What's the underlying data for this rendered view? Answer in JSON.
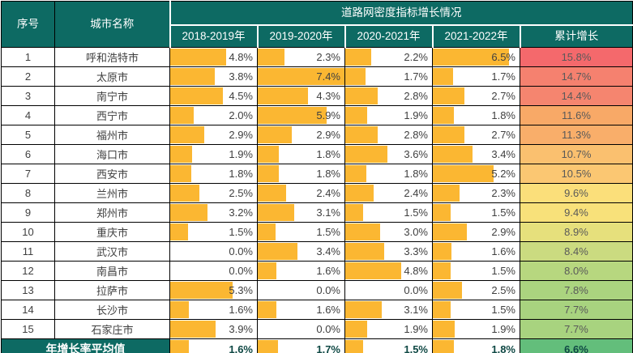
{
  "table": {
    "group_header": "道路网密度指标增长情况",
    "headers": {
      "seq": "序号",
      "city": "城市名称",
      "years": [
        "2018-2019年",
        "2019-2020年",
        "2020-2021年",
        "2021-2022年"
      ],
      "cumulative": "累计增长"
    },
    "average_label": "年增长率平均值"
  },
  "colors": {
    "header_bg": "#0D6A63",
    "bar_fill": "#FBB732",
    "grid_line": "#000000",
    "value_text": "#404040",
    "cumulative_text": "#595959",
    "average_value_text": "#0F4844",
    "average_cumulative_bg": "#63BE7B",
    "color_scale": [
      "#F8696B",
      "#FFEB84",
      "#63BE7B"
    ]
  },
  "chart_data": {
    "type": "table",
    "title": "道路网密度指标增长情况",
    "columns": [
      "序号",
      "城市名称",
      "2018-2019年",
      "2019-2020年",
      "2020-2021年",
      "2021-2022年",
      "累计增长"
    ],
    "unit": "%",
    "bar_scale": {
      "min": 0,
      "max": 7.4
    },
    "rows": [
      [
        1,
        "呼和浩特市",
        4.8,
        2.3,
        2.2,
        6.5,
        15.8
      ],
      [
        2,
        "太原市",
        3.8,
        7.4,
        1.7,
        1.7,
        14.7
      ],
      [
        3,
        "南宁市",
        4.5,
        4.3,
        2.8,
        2.7,
        14.4
      ],
      [
        4,
        "西宁市",
        2.0,
        5.9,
        1.9,
        1.8,
        11.6
      ],
      [
        5,
        "福州市",
        2.9,
        2.9,
        2.8,
        2.7,
        11.3
      ],
      [
        6,
        "海口市",
        1.9,
        1.8,
        3.6,
        3.4,
        10.7
      ],
      [
        7,
        "西安市",
        1.8,
        1.8,
        1.8,
        5.2,
        10.5
      ],
      [
        8,
        "兰州市",
        2.5,
        2.4,
        2.4,
        2.3,
        9.6
      ],
      [
        9,
        "郑州市",
        3.2,
        3.1,
        1.5,
        1.5,
        9.4
      ],
      [
        10,
        "重庆市",
        1.5,
        1.5,
        3.0,
        2.9,
        8.9
      ],
      [
        11,
        "武汉市",
        0.0,
        3.4,
        3.3,
        1.6,
        8.4
      ],
      [
        12,
        "南昌市",
        0.0,
        1.6,
        4.8,
        1.5,
        8.0
      ],
      [
        13,
        "拉萨市",
        5.3,
        0.0,
        0.0,
        2.5,
        7.8
      ],
      [
        14,
        "长沙市",
        1.6,
        1.6,
        3.1,
        1.5,
        7.7
      ],
      [
        15,
        "石家庄市",
        3.9,
        0.0,
        1.9,
        1.9,
        7.7
      ]
    ],
    "cumulative_row_colors": [
      "#F4696C",
      "#F5816F",
      "#F5856F",
      "#F8A967",
      "#F9AE6A",
      "#FAC06F",
      "#FBC772",
      "#FBDF7A",
      "#F8E17A",
      "#E6E07C",
      "#CBDB80",
      "#B7D77F",
      "#ABD47F",
      "#A8D37F",
      "#A8D37F"
    ],
    "average_row": {
      "label": "年增长率平均值",
      "values": [
        1.6,
        1.7,
        1.5,
        1.8
      ],
      "cumulative": 6.6
    }
  }
}
